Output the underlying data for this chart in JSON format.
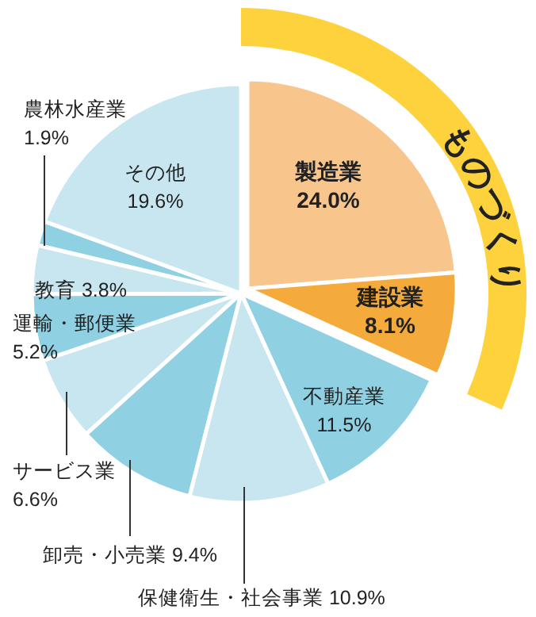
{
  "chart_data": {
    "type": "pie",
    "categories": [
      "製造業",
      "建設業",
      "不動産業",
      "保健衛生・社会事業",
      "卸売・小売業",
      "サービス業",
      "運輸・郵便業",
      "教育",
      "農林水産業",
      "その他"
    ],
    "values": [
      24.0,
      8.1,
      11.5,
      10.9,
      9.4,
      6.6,
      5.2,
      3.8,
      1.9,
      19.6
    ],
    "value_labels": [
      "24.0%",
      "8.1%",
      "11.5%",
      "10.9%",
      "9.4%",
      "6.6%",
      "5.2%",
      "3.8%",
      "1.9%",
      "19.6%"
    ],
    "colors": [
      "#f8c68c",
      "#f5aa3c",
      "#8fd0e2",
      "#c8e6f0",
      "#8fd0e2",
      "#c8e6f0",
      "#8fd0e2",
      "#c8e6f0",
      "#8fd0e2",
      "#c8e6f0"
    ],
    "annotations": [
      "ものづくり"
    ],
    "legend": false
  }
}
